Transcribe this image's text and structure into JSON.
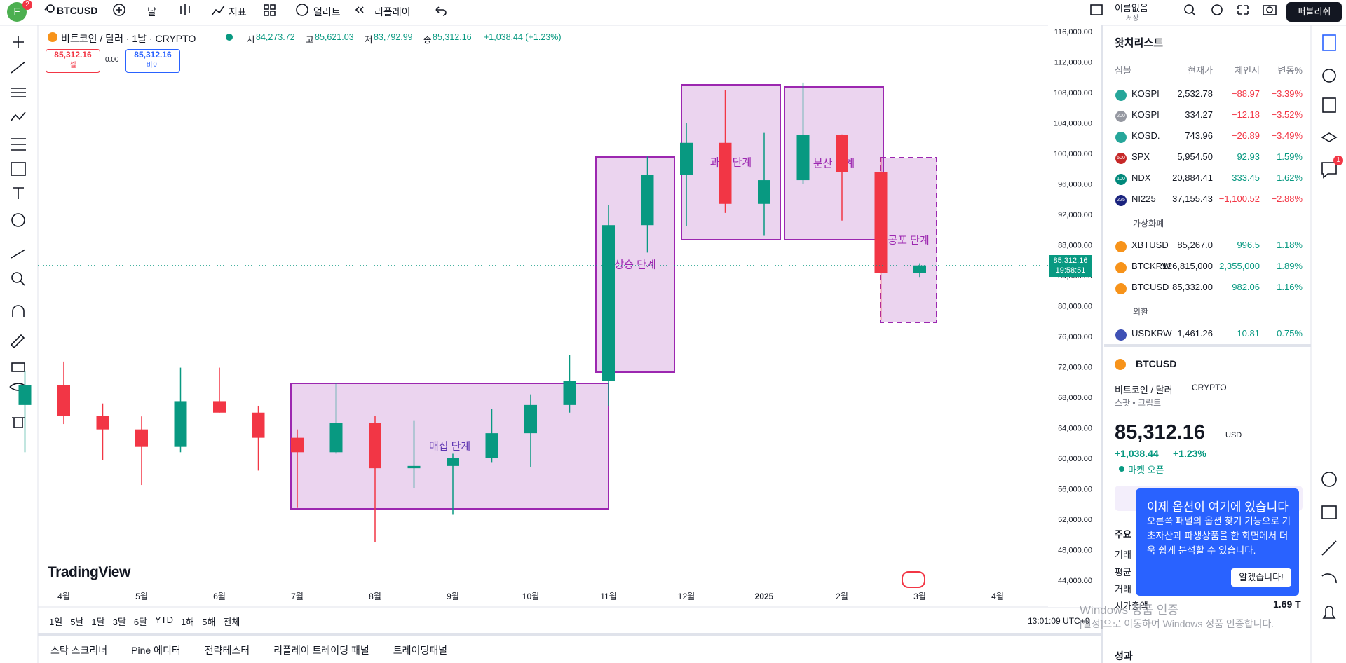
{
  "toolbar": {
    "avatar": "F",
    "badge": "2",
    "symbol": "BTCUSD",
    "interval": "날",
    "indicators": "지표",
    "alerts": "얼러트",
    "replay": "리플레이",
    "layout_name": "이름없음",
    "save_state": "저장",
    "publish": "퍼블리쉬"
  },
  "legend": {
    "title": "비트코인 / 달러 · 1날 · CRYPTO",
    "ohlc": [
      {
        "label": "시",
        "value": "84,273.72"
      },
      {
        "label": "고",
        "value": "85,621.03"
      },
      {
        "label": "저",
        "value": "83,792.99"
      },
      {
        "label": "종",
        "value": "85,312.16"
      }
    ],
    "change": "+1,038.44 (+1.23%)",
    "sell_price": "85,312.16",
    "sell": "셀",
    "spread": "0.00",
    "buy_price": "85,312.16",
    "buy": "바이"
  },
  "chart_data": {
    "type": "candlestick",
    "up_color": "#089981",
    "down_color": "#f23645",
    "categories": [
      null,
      "4월",
      null,
      "5월",
      null,
      "6월",
      null,
      "7월",
      null,
      "8월",
      null,
      "9월",
      null,
      "10월",
      null,
      "11월",
      null,
      "12월",
      null,
      "2025",
      null,
      "2월",
      null,
      "3월",
      null,
      "4월"
    ],
    "open": [
      67000,
      69600,
      65600,
      63800,
      61500,
      67500,
      66000,
      62700,
      60800,
      64600,
      58700,
      59000,
      60000,
      63300,
      67000,
      70200,
      90600,
      97200,
      101400,
      93400,
      96500,
      102400,
      97600,
      84300,
      null,
      null
    ],
    "high": [
      71500,
      72700,
      67200,
      65500,
      71900,
      71900,
      66900,
      63800,
      69900,
      65600,
      65000,
      60600,
      66500,
      68400,
      73600,
      93200,
      99600,
      104000,
      108300,
      102700,
      109300,
      102500,
      99500,
      85600,
      null,
      null
    ],
    "low": [
      60800,
      64500,
      59800,
      56500,
      60800,
      66000,
      58400,
      53500,
      60600,
      49000,
      56100,
      52600,
      59500,
      58900,
      66000,
      66800,
      87000,
      90500,
      92200,
      89200,
      96000,
      91200,
      78200,
      83800,
      null,
      null
    ],
    "close": [
      69600,
      65600,
      63800,
      61500,
      67500,
      66000,
      62700,
      60800,
      64600,
      58700,
      59000,
      60000,
      63300,
      67000,
      70200,
      90600,
      97200,
      101400,
      93400,
      96500,
      102400,
      97600,
      84300,
      85312.16,
      null,
      null
    ],
    "ylim": [
      44000,
      116000
    ],
    "yticks": [
      {
        "value": 44000,
        "label": "44,000.00"
      },
      {
        "value": 48000,
        "label": "48,000.00"
      },
      {
        "value": 52000,
        "label": "52,000.00"
      },
      {
        "value": 56000,
        "label": "56,000.00"
      },
      {
        "value": 60000,
        "label": "60,000.00"
      },
      {
        "value": 64000,
        "label": "64,000.00"
      },
      {
        "value": 68000,
        "label": "68,000.00"
      },
      {
        "value": 72000,
        "label": "72,000.00"
      },
      {
        "value": 76000,
        "label": "76,000.00"
      },
      {
        "value": 80000,
        "label": "80,000.00"
      },
      {
        "value": 84000,
        "label": "84,000.00"
      },
      {
        "value": 88000,
        "label": "88,000.00"
      },
      {
        "value": 92000,
        "label": "92,000.00"
      },
      {
        "value": 96000,
        "label": "96,000.00"
      },
      {
        "value": 100000,
        "label": "100,000.00"
      },
      {
        "value": 104000,
        "label": "104,000.00"
      },
      {
        "value": 108000,
        "label": "108,000.00"
      },
      {
        "value": 112000,
        "label": "112,000.00"
      },
      {
        "value": 116000,
        "label": "116,000.00"
      }
    ],
    "grid": false,
    "annotations": [
      {
        "text": "매집 단계"
      },
      {
        "text": "상승 단계"
      },
      {
        "text": "과열 단계"
      },
      {
        "text": "분산 단계"
      },
      {
        "text": "공포 단계",
        "dashed": true
      }
    ]
  },
  "price_tag": {
    "price": "85,312.16",
    "countdown": "19:58:51"
  },
  "branding": "TradingView",
  "ranges": [
    "1일",
    "5날",
    "1달",
    "3달",
    "6달",
    "YTD",
    "1해",
    "5해",
    "전체"
  ],
  "clock": "13:01:09 UTC+9",
  "bottom_tabs": [
    "스탁 스크리너",
    "Pine 에디터",
    "전략테스터",
    "리플레이 트레이딩 패널",
    "트레이딩패널"
  ],
  "watchlist": {
    "title": "왓치리스트",
    "columns": [
      "심볼",
      "현재가",
      "체인지",
      "변동%"
    ],
    "rows": [
      {
        "symbol": "KOSPI",
        "last": "2,532.78",
        "change": "−88.97",
        "change_pct": "−3.39%",
        "icon_color": "#26a69a"
      },
      {
        "symbol": "KOSPI",
        "last": "334.27",
        "change": "−12.18",
        "change_pct": "−3.52%",
        "icon": "200",
        "icon_color": "#9598a1"
      },
      {
        "symbol": "KOSD.",
        "last": "743.96",
        "change": "−26.89",
        "change_pct": "−3.49%",
        "icon_color": "#26a69a"
      },
      {
        "symbol": "SPX",
        "last": "5,954.50",
        "change": "92.93",
        "change_pct": "1.59%",
        "icon": "500",
        "icon_color": "#c62828"
      },
      {
        "symbol": "NDX",
        "last": "20,884.41",
        "change": "333.45",
        "change_pct": "1.62%",
        "icon": "100",
        "icon_color": "#00897b"
      },
      {
        "symbol": "NI225",
        "last": "37,155.43",
        "change": "−1,100.52",
        "change_pct": "−2.88%",
        "icon": "225",
        "icon_color": "#1a237e"
      }
    ],
    "sections": [
      {
        "name": "가상화폐",
        "rows": [
          {
            "symbol": "XBTUSD",
            "last": "85,267.0",
            "change": "996.5",
            "change_pct": "1.18%",
            "icon_color": "#f7931a"
          },
          {
            "symbol": "BTCKRW",
            "last": "126,815,000",
            "change": "2,355,000",
            "change_pct": "1.89%",
            "icon_color": "#f7931a"
          },
          {
            "symbol": "BTCUSD",
            "last": "85,332.00",
            "change": "982.06",
            "change_pct": "1.16%",
            "icon_color": "#f7931a"
          }
        ]
      },
      {
        "name": "외환",
        "rows": [
          {
            "symbol": "USDKRW",
            "last": "1,461.26",
            "change": "10.81",
            "change_pct": "0.75%",
            "icon_color": "#3f51b5"
          }
        ]
      }
    ]
  },
  "details": {
    "symbol": "BTCUSD",
    "name": "비트코인 / 달러",
    "exchange": "CRYPTO",
    "kind": "스팟 • 크립토",
    "price": "85,312.16",
    "currency": "USD",
    "change": "+1,038.44",
    "change_pct": "+1.23%",
    "status": "마켓 오픈",
    "stats": [
      "주요",
      "거래",
      "평균",
      "거래",
      "시가총액"
    ],
    "market_cap": "1.69 T",
    "performance": "성과"
  },
  "popup": {
    "title": "이제 옵션이 여기에 있습니다",
    "body": "오른쪽 패널의 옵션 찾기 기능으로 기초자산과 파생상품을 한 화면에서 더욱 쉽게 분석할 수 있습니다.",
    "button": "알겠습니다!"
  },
  "watermark": {
    "title": "Windows 정품 인증",
    "body": "[설정]으로 이동하여 Windows 정품 인증합니다."
  },
  "notification_badge": "1"
}
